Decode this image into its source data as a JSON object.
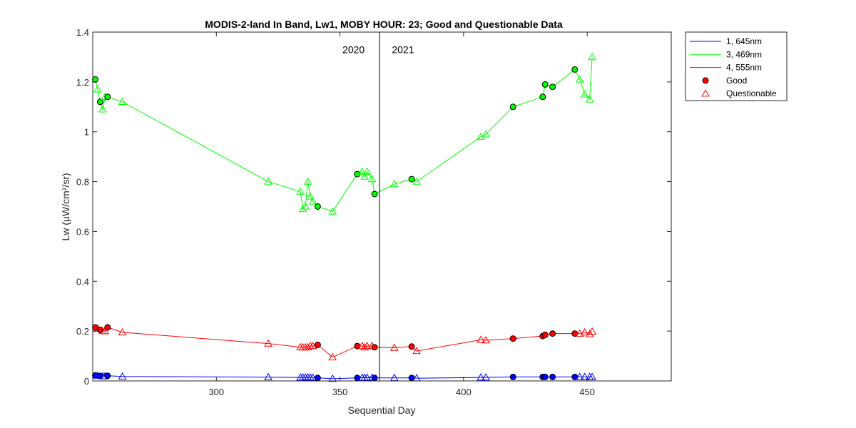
{
  "chart_data": {
    "type": "line",
    "title": "MODIS-2-land In Band,  Lw1, MOBY HOUR: 23;  Good and Questionable Data",
    "xlabel": "Sequential Day",
    "ylabel": "Lw (μW/cm²/sr)",
    "xlim": [
      250,
      484
    ],
    "ylim": [
      0,
      1.4
    ],
    "xticks": [
      300,
      350,
      400,
      450
    ],
    "yticks": [
      0,
      0.2,
      0.4,
      0.6,
      0.8,
      1.0,
      1.2,
      1.4
    ],
    "ytick_labels": [
      "0",
      "0.2",
      "0.4",
      "0.6",
      "0.8",
      "1",
      "1.2",
      "1.4"
    ],
    "year_divider_x": 366,
    "year_labels": [
      {
        "text": "2020",
        "x": 360,
        "y": 1.33,
        "anchor": "end"
      },
      {
        "text": "2021",
        "x": 371,
        "y": 1.33,
        "anchor": "start"
      }
    ],
    "grid": false,
    "legend_position": "outside-right",
    "legend": [
      {
        "label": "1, 645nm",
        "kind": "line",
        "color": "#0000ff"
      },
      {
        "label": "3, 469nm",
        "kind": "line",
        "color": "#00ff00"
      },
      {
        "label": "4, 555nm",
        "kind": "line",
        "color": "#ff0000"
      },
      {
        "label": "Good",
        "kind": "circle",
        "color": "#ff0000"
      },
      {
        "label": "Questionable",
        "kind": "triangle",
        "color": "#ff0000"
      }
    ],
    "x": [
      251,
      252,
      253,
      254,
      255,
      256,
      262,
      321,
      334,
      335,
      336,
      337,
      338,
      339,
      341,
      347,
      357,
      359,
      360,
      361,
      363,
      364,
      372,
      379,
      381,
      407,
      409,
      420,
      432,
      433,
      436,
      445,
      447,
      449,
      451,
      452
    ],
    "quality": [
      "G",
      "Q",
      "G",
      "Q",
      "Q",
      "G",
      "Q",
      "Q",
      "Q",
      "Q",
      "Q",
      "Q",
      "Q",
      "Q",
      "G",
      "Q",
      "G",
      "Q",
      "Q",
      "Q",
      "Q",
      "G",
      "Q",
      "G",
      "Q",
      "Q",
      "Q",
      "G",
      "G",
      "G",
      "G",
      "G",
      "Q",
      "Q",
      "Q",
      "Q"
    ],
    "series": [
      {
        "name": "1, 645nm",
        "color": "#0000ff",
        "values": [
          0.022,
          0.021,
          0.02,
          0.019,
          0.019,
          0.021,
          0.018,
          0.015,
          0.014,
          0.014,
          0.014,
          0.014,
          0.014,
          0.013,
          0.012,
          0.009,
          0.012,
          0.013,
          0.013,
          0.013,
          0.013,
          0.012,
          0.012,
          0.012,
          0.011,
          0.014,
          0.014,
          0.016,
          0.016,
          0.016,
          0.016,
          0.016,
          0.016,
          0.016,
          0.016,
          0.016
        ]
      },
      {
        "name": "3, 469nm",
        "color": "#00ff00",
        "values": [
          1.21,
          1.17,
          1.12,
          1.09,
          1.14,
          1.14,
          1.12,
          0.8,
          0.76,
          0.69,
          0.7,
          0.8,
          0.74,
          0.72,
          0.7,
          0.68,
          0.83,
          0.84,
          0.82,
          0.84,
          0.81,
          0.75,
          0.79,
          0.81,
          0.8,
          0.98,
          0.99,
          1.1,
          1.14,
          1.19,
          1.18,
          1.25,
          1.21,
          1.15,
          1.13,
          1.3
        ]
      },
      {
        "name": "4, 555nm",
        "color": "#ff0000",
        "values": [
          0.215,
          0.21,
          0.205,
          0.2,
          0.2,
          0.215,
          0.195,
          0.15,
          0.135,
          0.135,
          0.135,
          0.135,
          0.14,
          0.14,
          0.145,
          0.095,
          0.14,
          0.14,
          0.135,
          0.14,
          0.14,
          0.135,
          0.133,
          0.138,
          0.12,
          0.165,
          0.163,
          0.17,
          0.18,
          0.185,
          0.19,
          0.19,
          0.19,
          0.195,
          0.188,
          0.198
        ]
      }
    ]
  }
}
